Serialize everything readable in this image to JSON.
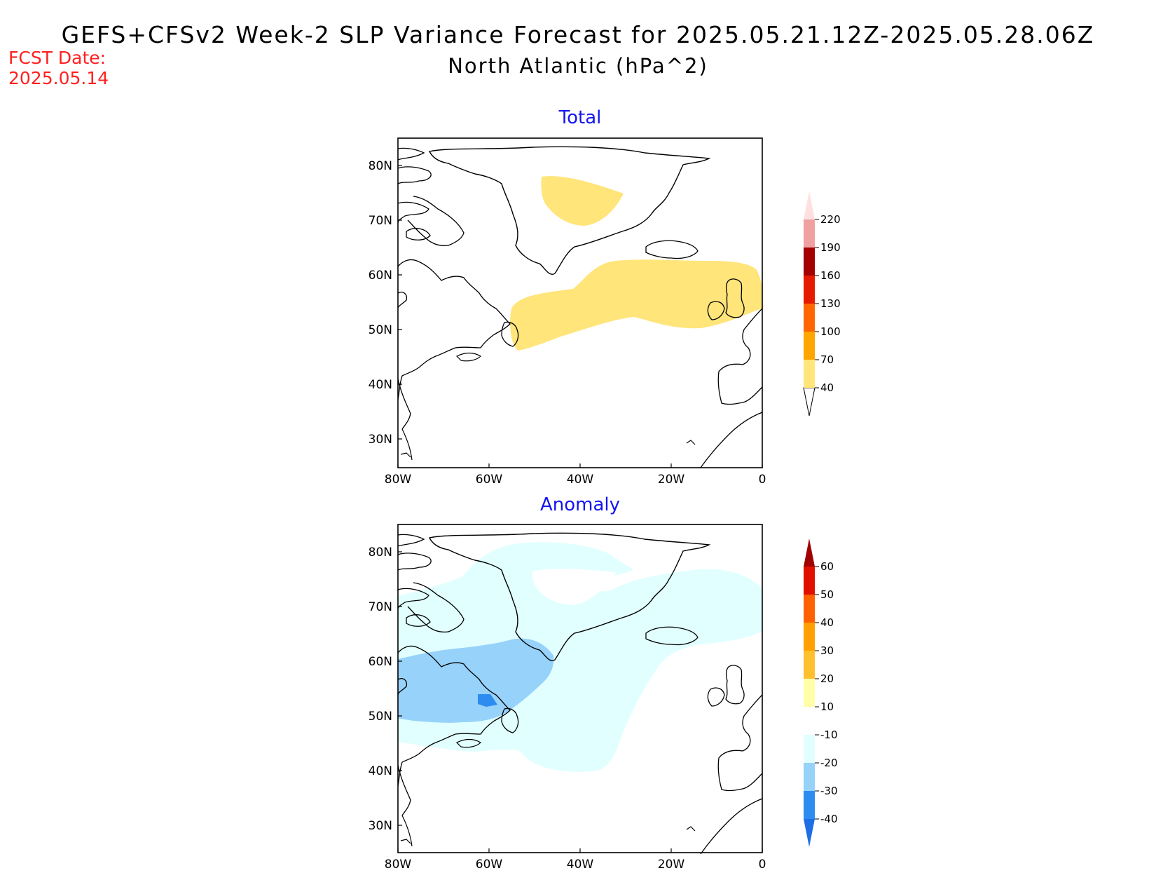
{
  "header": {
    "title_line1": "GEFS+CFSv2 Week-2 SLP Variance Forecast for 2025.05.21.12Z-2025.05.28.06Z",
    "title_line2": "North Atlantic (hPa^2)",
    "fcst_label": "FCST Date:",
    "fcst_value": "2025.05.14"
  },
  "panels": [
    {
      "title": "Total",
      "lat_labels": [
        "80N",
        "70N",
        "60N",
        "50N",
        "40N",
        "30N"
      ],
      "lon_labels": [
        "80W",
        "60W",
        "40W",
        "20W",
        "0"
      ],
      "colorbar": {
        "levels": [
          "40",
          "70",
          "100",
          "130",
          "160",
          "190",
          "220"
        ],
        "colors": [
          "#ffe57a",
          "#ffa500",
          "#ff6600",
          "#e61a00",
          "#a50000",
          "#f0a0a0",
          "#ffe0e0"
        ]
      }
    },
    {
      "title": "Anomaly",
      "lat_labels": [
        "80N",
        "70N",
        "60N",
        "50N",
        "40N",
        "30N"
      ],
      "lon_labels": [
        "80W",
        "60W",
        "40W",
        "20W",
        "0"
      ],
      "colorbar": {
        "levels": [
          "-40",
          "-30",
          "-20",
          "-10",
          "10",
          "20",
          "30",
          "40",
          "50",
          "60"
        ],
        "colors": [
          "#1e6ee6",
          "#2d8cf0",
          "#96d2fa",
          "#e1ffff",
          "#ffffff",
          "#ffffaa",
          "#ffc030",
          "#ffa000",
          "#ff6000",
          "#e01000",
          "#a00000"
        ]
      }
    }
  ]
}
